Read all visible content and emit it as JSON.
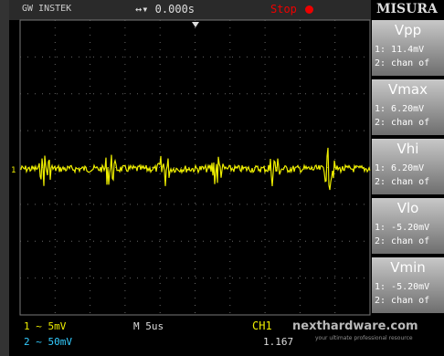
{
  "header": {
    "brand": "GW INSTEK",
    "timebase_marker": "↔▾ 0.000s",
    "status": "Stop",
    "panel_title": "MISURA"
  },
  "measurements": [
    {
      "label": "Vpp",
      "ch1": "1: 11.4mV",
      "ch2": "2: chan of"
    },
    {
      "label": "Vmax",
      "ch1": "1: 6.20mV",
      "ch2": "2: chan of"
    },
    {
      "label": "Vhi",
      "ch1": "1: 6.20mV",
      "ch2": "2: chan of"
    },
    {
      "label": "Vlo",
      "ch1": "1: -5.20mV",
      "ch2": "2: chan of"
    },
    {
      "label": "Vmin",
      "ch1": "1: -5.20mV",
      "ch2": "2: chan of"
    }
  ],
  "footer": {
    "ch1_scale": "1 ~ 5mV",
    "ch2_scale": "2 ~ 50mV",
    "time_scale": "M 5us",
    "trigger_source": "CH1",
    "frequency": "1.167"
  },
  "watermark": {
    "site": "nexthardware.com",
    "tagline": "your ultimate professional resource"
  }
}
